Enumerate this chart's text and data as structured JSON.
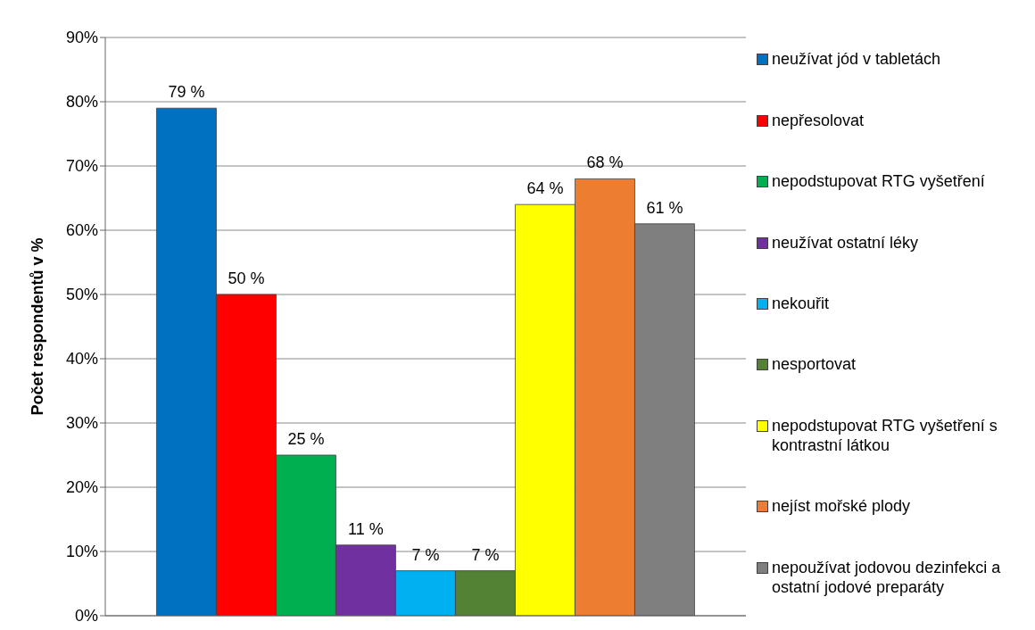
{
  "chart_data": {
    "type": "bar",
    "ylabel": "Počet respondentů v %",
    "categories": [
      null
    ],
    "series": [
      {
        "name": "neužívat jód v tabletách",
        "color": "#0070c0",
        "values": [
          79
        ],
        "value_labels": [
          "79 %"
        ]
      },
      {
        "name": "nepřesolovat",
        "color": "#ff0000",
        "values": [
          50
        ],
        "value_labels": [
          "50 %"
        ]
      },
      {
        "name": "nepodstupovat RTG vyšetření",
        "color": "#00b050",
        "values": [
          25
        ],
        "value_labels": [
          "25 %"
        ]
      },
      {
        "name": "neužívat ostatní léky",
        "color": "#7030a0",
        "values": [
          11
        ],
        "value_labels": [
          "11 %"
        ]
      },
      {
        "name": "nekouřit",
        "color": "#00b0f0",
        "values": [
          7
        ],
        "value_labels": [
          "7 %"
        ]
      },
      {
        "name": "nesportovat",
        "color": "#548235",
        "values": [
          7
        ],
        "value_labels": [
          "7 %"
        ]
      },
      {
        "name": "nepodstupovat RTG vyšetření s kontrastní látkou",
        "color": "#ffff00",
        "values": [
          64
        ],
        "value_labels": [
          "64 %"
        ]
      },
      {
        "name": "nejíst mořské plody",
        "color": "#ed7d31",
        "values": [
          68
        ],
        "value_labels": [
          "68 %"
        ]
      },
      {
        "name": "nepoužívat jodovou dezinfekci a ostatní jodové preparáty",
        "color": "#7f7f7f",
        "values": [
          61
        ],
        "value_labels": [
          "61 %"
        ]
      }
    ],
    "ylim": [
      0,
      90
    ],
    "yticks": [
      {
        "value": 0,
        "label": "0%"
      },
      {
        "value": 10,
        "label": "10%"
      },
      {
        "value": 20,
        "label": "20%"
      },
      {
        "value": 30,
        "label": "30%"
      },
      {
        "value": 40,
        "label": "40%"
      },
      {
        "value": 50,
        "label": "50%"
      },
      {
        "value": 60,
        "label": "60%"
      },
      {
        "value": 70,
        "label": "70%"
      },
      {
        "value": 80,
        "label": "80%"
      },
      {
        "value": 90,
        "label": "90%"
      }
    ],
    "grid": "y",
    "legend": "right"
  }
}
